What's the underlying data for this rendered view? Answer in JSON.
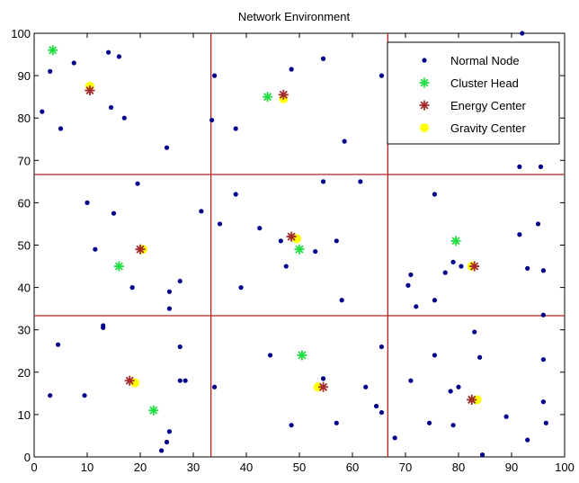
{
  "chart_data": {
    "type": "scatter",
    "title": "Network Environment",
    "xlim": [
      0,
      100
    ],
    "ylim": [
      0,
      100
    ],
    "x_ticks": [
      0,
      10,
      20,
      30,
      40,
      50,
      60,
      70,
      80,
      90,
      100
    ],
    "y_ticks": [
      0,
      10,
      20,
      30,
      40,
      50,
      60,
      70,
      80,
      90,
      100
    ],
    "grid": false,
    "legend_position": "top-right",
    "partition_lines": {
      "color": "#b22222",
      "vertical_x": [
        33.33,
        66.67
      ],
      "horizontal_y": [
        33.33,
        66.67
      ]
    },
    "series": [
      {
        "name": "Normal Node",
        "marker": "dot",
        "color": "#00008b",
        "points": [
          [
            1.5,
            81.5
          ],
          [
            3,
            91
          ],
          [
            5,
            77.5
          ],
          [
            7.5,
            93
          ],
          [
            10,
            60
          ],
          [
            14,
            95.5
          ],
          [
            16,
            94.5
          ],
          [
            14.5,
            82.5
          ],
          [
            17,
            80
          ],
          [
            15,
            57.5
          ],
          [
            19.5,
            64.5
          ],
          [
            11.5,
            49
          ],
          [
            18.5,
            40
          ],
          [
            25.5,
            39
          ],
          [
            25.5,
            35
          ],
          [
            27.5,
            41.5
          ],
          [
            25,
            73
          ],
          [
            31.5,
            58
          ],
          [
            33.5,
            79.5
          ],
          [
            34,
            90
          ],
          [
            38,
            77.5
          ],
          [
            38,
            62
          ],
          [
            35,
            55
          ],
          [
            39,
            40
          ],
          [
            42.5,
            54
          ],
          [
            46.5,
            51
          ],
          [
            47.5,
            45
          ],
          [
            48.5,
            91.5
          ],
          [
            54.5,
            94
          ],
          [
            54.5,
            65
          ],
          [
            57,
            51
          ],
          [
            53,
            48.5
          ],
          [
            58.5,
            74.5
          ],
          [
            58,
            37
          ],
          [
            61.5,
            65
          ],
          [
            65.5,
            90
          ],
          [
            70.5,
            40.5
          ],
          [
            71,
            43
          ],
          [
            72,
            35.5
          ],
          [
            75.5,
            62
          ],
          [
            75.5,
            37
          ],
          [
            77.5,
            43.5
          ],
          [
            79,
            46
          ],
          [
            80.5,
            45
          ],
          [
            91.5,
            68.5
          ],
          [
            91.5,
            52.5
          ],
          [
            95.5,
            68.5
          ],
          [
            93,
            44.5
          ],
          [
            95,
            55
          ],
          [
            96,
            44
          ],
          [
            96,
            33.5
          ],
          [
            92,
            100
          ],
          [
            4.5,
            26.5
          ],
          [
            3,
            14.5
          ],
          [
            9.5,
            14.5
          ],
          [
            13,
            30.5
          ],
          [
            13,
            31
          ],
          [
            25.5,
            6
          ],
          [
            25,
            3.5
          ],
          [
            24,
            1.5
          ],
          [
            27.5,
            26
          ],
          [
            27.5,
            18
          ],
          [
            28.5,
            18
          ],
          [
            34,
            16.5
          ],
          [
            44.5,
            24
          ],
          [
            48.5,
            7.5
          ],
          [
            54.5,
            18.5
          ],
          [
            57,
            8
          ],
          [
            62.5,
            16.5
          ],
          [
            64.5,
            12
          ],
          [
            65.5,
            10.5
          ],
          [
            65.5,
            26
          ],
          [
            68,
            4.5
          ],
          [
            71,
            18
          ],
          [
            74.5,
            8
          ],
          [
            75.5,
            24
          ],
          [
            78.5,
            15.5
          ],
          [
            79,
            7.5
          ],
          [
            80,
            16.5
          ],
          [
            83,
            29.5
          ],
          [
            84,
            23.5
          ],
          [
            84.5,
            0.5
          ],
          [
            89,
            9.5
          ],
          [
            93,
            4
          ],
          [
            96,
            23
          ],
          [
            96,
            13
          ],
          [
            96.5,
            8
          ]
        ]
      },
      {
        "name": "Cluster Head",
        "marker": "asterisk",
        "color": "#22dd44",
        "points": [
          [
            3.5,
            96
          ],
          [
            44,
            85
          ],
          [
            16,
            45
          ],
          [
            50,
            49
          ],
          [
            79.5,
            51
          ],
          [
            22.5,
            11
          ],
          [
            50.5,
            24
          ],
          [
            82.5,
            13.5
          ]
        ]
      },
      {
        "name": "Energy Center",
        "marker": "asterisk",
        "color": "#a52a2a",
        "points": [
          [
            10.5,
            86.5
          ],
          [
            47,
            85.5
          ],
          [
            20,
            49
          ],
          [
            48.5,
            52
          ],
          [
            83,
            45
          ],
          [
            18,
            18
          ],
          [
            54.5,
            16.5
          ],
          [
            82.5,
            13.5
          ]
        ]
      },
      {
        "name": "Gravity Center",
        "marker": "dot-large",
        "color": "#ffff00",
        "points": [
          [
            10.5,
            87.5
          ],
          [
            47,
            84.5
          ],
          [
            20.5,
            49
          ],
          [
            49.5,
            51.5
          ],
          [
            82.5,
            45
          ],
          [
            19,
            17.5
          ],
          [
            53.5,
            16.5
          ],
          [
            83.5,
            13.5
          ]
        ]
      }
    ]
  }
}
